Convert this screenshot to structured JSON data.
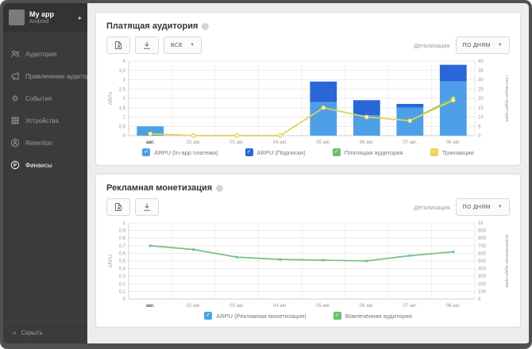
{
  "app_switcher": {
    "name": "My app",
    "platform": "Android"
  },
  "sidebar": {
    "items": [
      {
        "label": "Аудитория",
        "icon": "people-icon",
        "active": false
      },
      {
        "label": "Привлечение аудитории",
        "icon": "megaphone-icon",
        "active": false
      },
      {
        "label": "События",
        "icon": "gear-icon",
        "active": false
      },
      {
        "label": "Устройства",
        "icon": "grid-icon",
        "active": false
      },
      {
        "label": "Retention",
        "icon": "person-circle-icon",
        "active": false
      },
      {
        "label": "Финансы",
        "icon": "ruble-icon",
        "active": true
      }
    ],
    "collapse_label": "Скрыть"
  },
  "panels": [
    {
      "title": "Платящая аудитория",
      "toolbar": {
        "report_icon": "export-report-icon",
        "download_icon": "download-icon",
        "filter_value": "ВСЕ",
        "detail_label": "Детализация",
        "detail_value": "ПО ДНЯМ"
      },
      "legend": [
        {
          "label": "ARPU (In-app платежи)",
          "color": "#4da0e8",
          "checked": true
        },
        {
          "label": "ARPU (Подписки)",
          "color": "#2b66d9",
          "checked": true
        },
        {
          "label": "Платящая аудитория",
          "color": "#66c16c",
          "checked": true
        },
        {
          "label": "Транзакции",
          "color": "#eed44f",
          "checked": true
        }
      ],
      "chart_data": {
        "type": "bar",
        "categories": [
          "авг.",
          "02 авг.",
          "03 авг.",
          "04 авг.",
          "05 авг.",
          "06 авг.",
          "07 авг.",
          "08 авг."
        ],
        "series": [
          {
            "name": "ARPU (In-app платежи)",
            "render": "bar",
            "axis": "left",
            "color": "#4da0e8",
            "values": [
              0.5,
              0,
              0,
              0,
              1.8,
              1.1,
              1.5,
              2.9
            ]
          },
          {
            "name": "ARPU (Подписки)",
            "render": "bar",
            "axis": "left",
            "color": "#2b66d9",
            "values": [
              0,
              0,
              0,
              0,
              1.1,
              0.8,
              0.2,
              0.9
            ]
          },
          {
            "name": "Платящая аудитория",
            "render": "line",
            "axis": "right",
            "color": "#7cc47c",
            "values": [
              1,
              0,
              0,
              0,
              15,
              10,
              8,
              20
            ]
          },
          {
            "name": "Транзакции",
            "render": "line",
            "axis": "right",
            "color": "#e8d44f",
            "values": [
              1,
              0,
              0,
              0,
              15,
              10,
              8,
              19
            ]
          }
        ],
        "ylabel_left": "ARPU",
        "ylabel_right": "Платящая аудитория",
        "ylim_left": [
          0,
          4
        ],
        "ylim_right": [
          0,
          40
        ],
        "yticks_left": [
          "4",
          "3,5",
          "3",
          "2,5",
          "2",
          "1,5",
          "1",
          "0,5",
          "0"
        ],
        "yticks_right": [
          "40",
          "35",
          "30",
          "25",
          "20",
          "15",
          "10",
          "5",
          "0"
        ],
        "grid": true,
        "legend_position": "bottom",
        "marker": "ring"
      }
    },
    {
      "title": "Рекламная монетизация",
      "toolbar": {
        "report_icon": "export-report-icon",
        "download_icon": "download-icon",
        "detail_label": "Детализация",
        "detail_value": "ПО ДНЯМ"
      },
      "legend": [
        {
          "label": "ARPU (Рекламная монетизация)",
          "color": "#45a7e0",
          "checked": true
        },
        {
          "label": "Вовлечённая аудитория",
          "color": "#66c16c",
          "checked": true
        }
      ],
      "chart_data": {
        "type": "line",
        "categories": [
          "авг.",
          "02 авг.",
          "03 авг.",
          "04 авг.",
          "05 авг.",
          "06 авг.",
          "07 авг.",
          "08 авг."
        ],
        "series": [
          {
            "name": "ARPU (Рекламная монетизация)",
            "render": "line",
            "axis": "left",
            "color": "#45a7e0",
            "values": [
              0.7,
              0.65,
              0.55,
              0.52,
              0.51,
              0.5,
              0.57,
              0.62
            ]
          },
          {
            "name": "Вовлечённая аудитория",
            "render": "line",
            "axis": "right",
            "color": "#7cc47c",
            "values": [
              700,
              650,
              550,
              520,
              510,
              500,
              570,
              620
            ]
          }
        ],
        "ylabel_left": "ARPU",
        "ylabel_right": "Вовлечённая аудитория",
        "ylim_left": [
          0,
          1
        ],
        "ylim_right": [
          0,
          1000
        ],
        "yticks_left": [
          "1",
          "0,9",
          "0,8",
          "0,7",
          "0,6",
          "0,5",
          "0,4",
          "0,3",
          "0,2",
          "0,1",
          "0"
        ],
        "yticks_right": [
          "1k",
          "900",
          "800",
          "700",
          "600",
          "500",
          "400",
          "300",
          "200",
          "100",
          "0"
        ],
        "grid": true,
        "legend_position": "bottom",
        "marker": "dot"
      }
    }
  ]
}
